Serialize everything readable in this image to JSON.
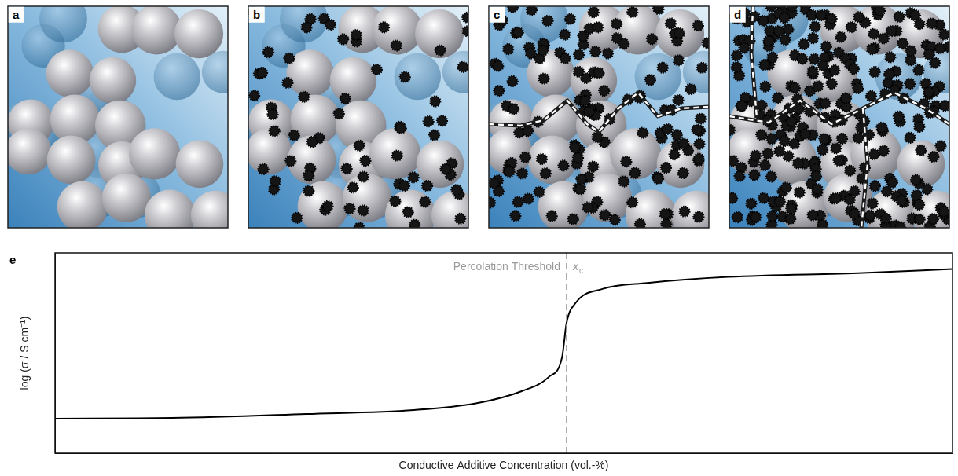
{
  "panels": [
    {
      "label": "a"
    },
    {
      "label": "b"
    },
    {
      "label": "c"
    },
    {
      "label": "d"
    }
  ],
  "chart_data": {
    "panel_label": "e",
    "type": "line",
    "x_label": "Conductive Additive Concentration (vol.-%)",
    "y_label": "log (σ / S cm⁻¹)",
    "xlim": [
      0,
      100
    ],
    "ylim": [
      0,
      10
    ],
    "tick_labels": false,
    "grid": false,
    "color": "#000000",
    "x": [
      0,
      13,
      28,
      40,
      47,
      52,
      55,
      56.5,
      57,
      58,
      61,
      66,
      75,
      90,
      100
    ],
    "values": [
      1.73,
      1.76,
      1.96,
      2.16,
      2.5,
      3.1,
      3.8,
      4.8,
      6.5,
      7.5,
      8.2,
      8.5,
      8.8,
      9.0,
      9.2
    ],
    "annotations": [
      {
        "type": "vline",
        "x": 57,
        "label": "Percolation Threshold",
        "symbol": "x",
        "subscript": "c",
        "color": "#9a9a9a",
        "line_style": "dashed"
      }
    ]
  }
}
